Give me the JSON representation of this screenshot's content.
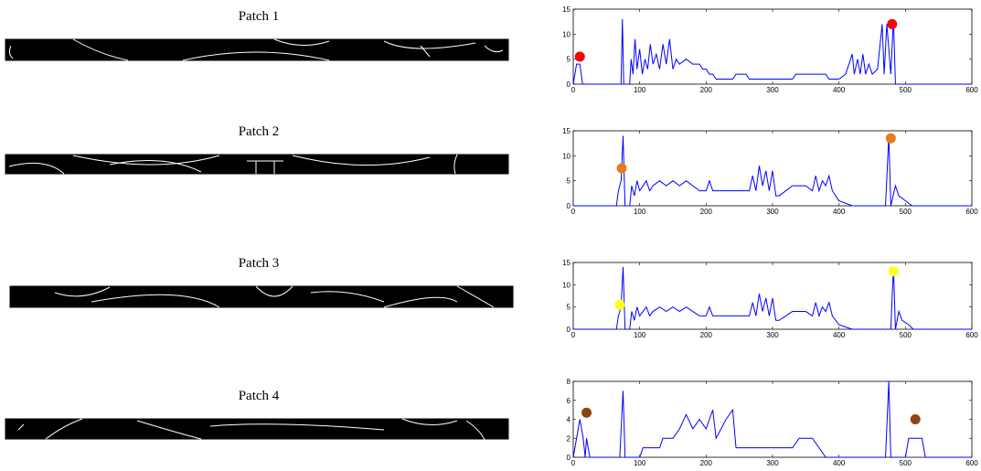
{
  "patches": [
    "Patch 1",
    "Patch 2",
    "Patch 3",
    "Patch 4"
  ],
  "chart_data": [
    {
      "type": "line",
      "color": "#0000ff",
      "xlim": [
        0,
        600
      ],
      "xticks": [
        0,
        100,
        200,
        300,
        400,
        500,
        600
      ],
      "ylim": [
        0,
        15
      ],
      "yticks": [
        0,
        5,
        10,
        15
      ],
      "x": [
        0,
        5,
        10,
        14,
        72,
        74,
        76,
        85,
        87,
        90,
        93,
        96,
        100,
        104,
        108,
        112,
        116,
        120,
        125,
        130,
        135,
        140,
        145,
        150,
        155,
        160,
        170,
        180,
        190,
        195,
        200,
        205,
        210,
        215,
        240,
        245,
        260,
        265,
        300,
        305,
        330,
        335,
        380,
        385,
        400,
        410,
        420,
        423,
        428,
        432,
        436,
        440,
        445,
        450,
        458,
        465,
        468,
        472,
        478,
        482,
        485,
        600
      ],
      "values": [
        0,
        4,
        4,
        0,
        0,
        13,
        0,
        0,
        5,
        2,
        9,
        3,
        7,
        2,
        5,
        3,
        8,
        4,
        6,
        3,
        8,
        4,
        9,
        3,
        5,
        4,
        5,
        4,
        4,
        3,
        3,
        2,
        2,
        1,
        1,
        2,
        2,
        1,
        1,
        1,
        1,
        2,
        2,
        1,
        1,
        2,
        6,
        2,
        5,
        2,
        6,
        2,
        4,
        2,
        3,
        12,
        2,
        12,
        2,
        13,
        0,
        0
      ],
      "markers": {
        "color": "#ff0000",
        "x": [
          10,
          480
        ],
        "values": [
          5.5,
          12
        ]
      }
    },
    {
      "type": "line",
      "color": "#0000ff",
      "xlim": [
        0,
        600
      ],
      "xticks": [
        0,
        100,
        200,
        300,
        400,
        500,
        600
      ],
      "ylim": [
        0,
        15
      ],
      "yticks": [
        0,
        5,
        10,
        15
      ],
      "x": [
        0,
        65,
        68,
        72,
        75,
        78,
        85,
        88,
        92,
        96,
        100,
        105,
        110,
        115,
        120,
        130,
        140,
        150,
        160,
        170,
        180,
        190,
        200,
        205,
        210,
        230,
        250,
        265,
        270,
        275,
        280,
        285,
        290,
        295,
        300,
        305,
        310,
        330,
        340,
        350,
        360,
        365,
        370,
        375,
        380,
        385,
        390,
        400,
        420,
        470,
        475,
        478,
        485,
        490,
        500,
        510,
        600
      ],
      "values": [
        0,
        0,
        3,
        5,
        14,
        0,
        0,
        4,
        2,
        5,
        3,
        4,
        5,
        3,
        4,
        5,
        4,
        5,
        4,
        5,
        4,
        3,
        3,
        5,
        3,
        3,
        3,
        3,
        6,
        3,
        8,
        4,
        7,
        3,
        7,
        2,
        2,
        4,
        4,
        4,
        3,
        6,
        3,
        5,
        4,
        6,
        3,
        1,
        0,
        0,
        14,
        0,
        4,
        2,
        1,
        0,
        0
      ],
      "markers": {
        "color": "#e87a1c",
        "x": [
          73,
          478
        ],
        "values": [
          7.5,
          13.5
        ]
      }
    },
    {
      "type": "line",
      "color": "#0000ff",
      "xlim": [
        0,
        600
      ],
      "xticks": [
        0,
        100,
        200,
        300,
        400,
        500,
        600
      ],
      "ylim": [
        0,
        15
      ],
      "yticks": [
        0,
        5,
        10,
        15
      ],
      "x": [
        0,
        65,
        68,
        72,
        75,
        78,
        85,
        88,
        92,
        96,
        100,
        105,
        110,
        115,
        120,
        130,
        140,
        150,
        160,
        170,
        180,
        190,
        200,
        205,
        210,
        230,
        250,
        265,
        270,
        275,
        280,
        285,
        290,
        295,
        300,
        305,
        310,
        330,
        340,
        350,
        360,
        365,
        370,
        375,
        380,
        385,
        390,
        400,
        420,
        478,
        482,
        485,
        490,
        495,
        505,
        512,
        600
      ],
      "values": [
        0,
        0,
        3,
        5,
        14,
        0,
        0,
        4,
        2,
        5,
        3,
        4,
        5,
        3,
        4,
        5,
        4,
        5,
        4,
        5,
        4,
        3,
        3,
        5,
        3,
        3,
        3,
        3,
        6,
        3,
        8,
        4,
        7,
        3,
        7,
        2,
        2,
        4,
        4,
        4,
        3,
        6,
        3,
        5,
        4,
        6,
        3,
        1,
        0,
        0,
        14,
        0,
        4,
        2,
        1,
        0,
        0
      ],
      "markers": {
        "color": "#ffff1a",
        "x": [
          70,
          482
        ],
        "values": [
          5.5,
          13
        ]
      }
    },
    {
      "type": "line",
      "color": "#0000ff",
      "xlim": [
        0,
        600
      ],
      "xticks": [
        0,
        100,
        200,
        300,
        400,
        500,
        600
      ],
      "ylim": [
        0,
        8
      ],
      "yticks": [
        0,
        2,
        4,
        6,
        8
      ],
      "x": [
        0,
        10,
        15,
        18,
        20,
        25,
        70,
        75,
        78,
        100,
        105,
        130,
        135,
        150,
        160,
        170,
        180,
        190,
        200,
        210,
        215,
        230,
        240,
        245,
        300,
        310,
        330,
        340,
        360,
        370,
        380,
        470,
        475,
        478,
        500,
        505,
        525,
        530,
        600
      ],
      "values": [
        0,
        4,
        2,
        0,
        2,
        0,
        0,
        7,
        0,
        0,
        1,
        1,
        2,
        2,
        3,
        4.5,
        3,
        4,
        3,
        5,
        2,
        4,
        5,
        1,
        1,
        1,
        1,
        2,
        2,
        1,
        0,
        0,
        8,
        0,
        0,
        2,
        2,
        0,
        0
      ],
      "markers": {
        "color": "#8b4513",
        "x": [
          20,
          515
        ],
        "values": [
          4.7,
          4
        ]
      }
    }
  ]
}
